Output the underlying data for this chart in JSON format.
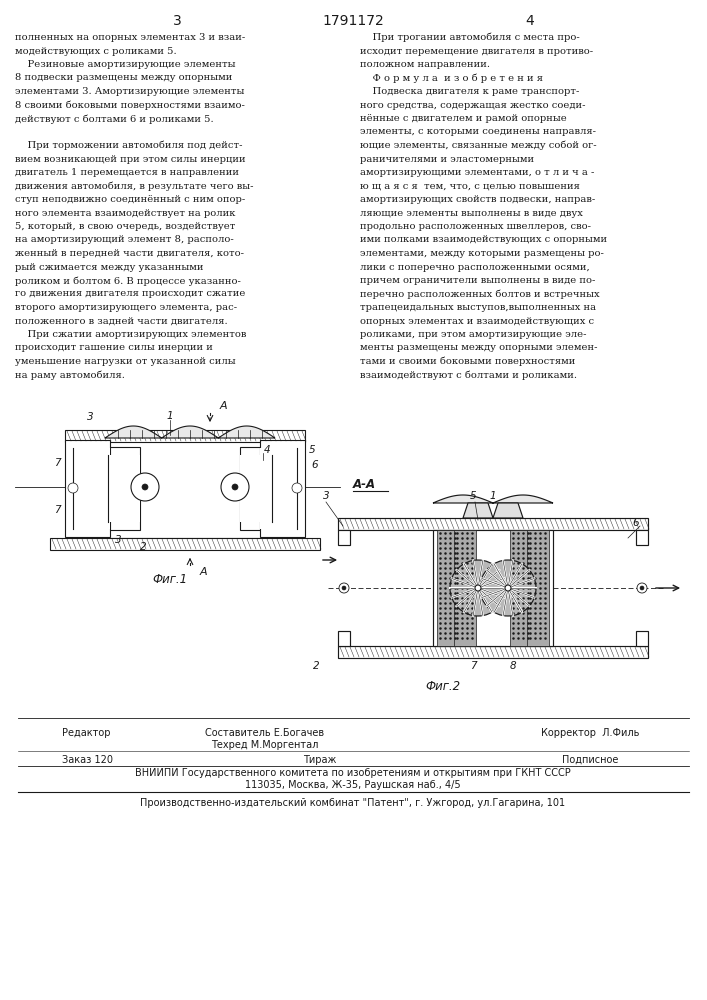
{
  "page_number_left": "3",
  "page_number_center": "1791172",
  "page_number_right": "4",
  "bg_color": "#ffffff",
  "text_color": "#1a1a1a",
  "left_column_text": [
    "полненных на опорных элементах 3 и взаи-",
    "модействующих с роликами 5.",
    "    Резиновые амортизирующие элементы",
    "8 подвески размещены между опорными",
    "элементами 3. Амортизирующие элементы",
    "8 своими боковыми поверхностями взаимо-",
    "действуют с болтами 6 и роликами 5.",
    "",
    "    При торможении автомобиля под дейст-",
    "вием возникающей при этом силы инерции",
    "двигатель 1 перемещается в направлении",
    "движения автомобиля, в результате чего вы-",
    "ступ неподвижно соединённый с ним опор-",
    "ного элемента взаимодействует на ролик",
    "5, который, в свою очередь, воздействует",
    "на амортизирующий элемент 8, располо-",
    "женный в передней части двигателя, кото-",
    "рый сжимается между указанными",
    "роликом и болтом 6. В процессе указанно-",
    "го движения двигателя происходит сжатие",
    "второго амортизирующего элемента, рас-",
    "положенного в задней части двигателя.",
    "    При сжатии амортизирующих элементов",
    "происходит гашение силы инерции и",
    "уменьшение нагрузки от указанной силы",
    "на раму автомобиля."
  ],
  "right_column_text": [
    "    При трогании автомобиля с места про-",
    "исходит перемещение двигателя в противо-",
    "положном направлении.",
    "    Ф о р м у л а  и з о б р е т е н и я",
    "    Подвеска двигателя к раме транспорт-",
    "ного средства, содержащая жестко соеди-",
    "нённые с двигателем и рамой опорные",
    "элементы, с которыми соединены направля-",
    "ющие элементы, связанные между собой ог-",
    "раничителями и эластомерными",
    "амортизирующими элементами, о т л и ч а -",
    "ю щ а я с я  тем, что, с целью повышения",
    "амортизирующих свойств подвески, направ-",
    "ляющие элементы выполнены в виде двух",
    "продольно расположенных швеллеров, сво-",
    "ими полками взаимодействующих с опорными",
    "элементами, между которыми размещены ро-",
    "лики с поперечно расположенными осями,",
    "причем ограничители выполнены в виде по-",
    "перечно расположенных болтов и встречных",
    "трапецеидальных выступов,выполненных на",
    "опорных элементах и взаимодействующих с",
    "роликами, при этом амортизирующие эле-",
    "менты размещены между опорными элемен-",
    "тами и своими боковыми поверхностями",
    "взаимодействуют с болтами и роликами."
  ],
  "footer_editor": "Редактор",
  "footer_compiler": "Составитель Е.Богачев",
  "footer_corrector": "Корректор  Л.Филь",
  "footer_techred": "Техред М.Моргентал",
  "footer_order": "Заказ 120",
  "footer_tirazh": "Тираж",
  "footer_podpisnoe": "Подписное",
  "footer_vniipii": "ВНИИПИ Государственного комитета по изобретениям и открытиям при ГКНТ СССР",
  "footer_address": "113035, Москва, Ж-35, Раушская наб., 4/5",
  "footer_publisher": "Производственно-издательский комбинат \"Патент\", г. Ужгород, ул.Гагарина, 101"
}
